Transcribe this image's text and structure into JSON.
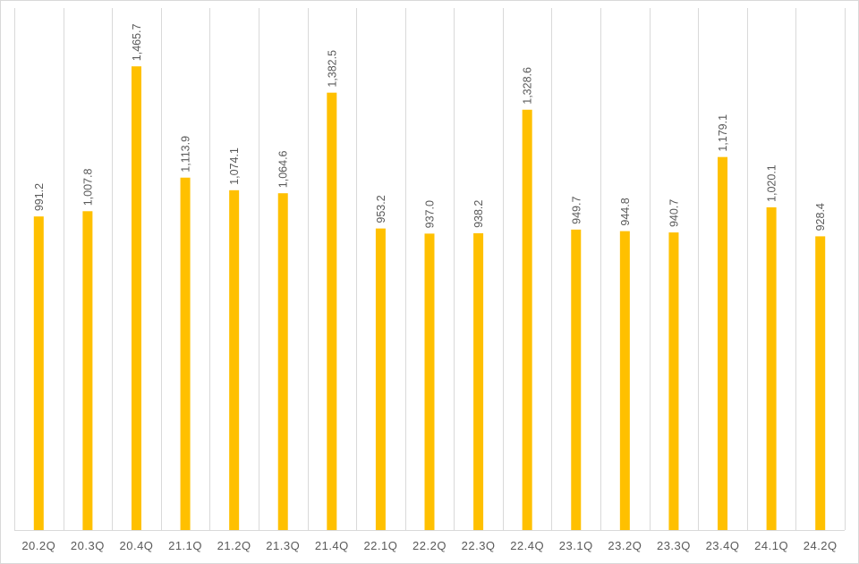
{
  "chart_data": {
    "type": "bar",
    "title": "",
    "xlabel": "",
    "ylabel": "",
    "categories": [
      "20.2Q",
      "20.3Q",
      "20.4Q",
      "21.1Q",
      "21.2Q",
      "21.3Q",
      "21.4Q",
      "22.1Q",
      "22.2Q",
      "22.3Q",
      "22.4Q",
      "23.1Q",
      "23.2Q",
      "23.3Q",
      "23.4Q",
      "24.1Q",
      "24.2Q"
    ],
    "values": [
      991.2,
      1007.8,
      1465.7,
      1113.9,
      1074.1,
      1064.6,
      1382.5,
      953.2,
      937.0,
      938.2,
      1328.6,
      949.7,
      944.8,
      940.7,
      1179.1,
      1020.1,
      928.4
    ],
    "data_labels": [
      "991.2",
      "1,007.8",
      "1,465.7",
      "1,113.9",
      "1,074.1",
      "1,064.6",
      "1,382.5",
      "953.2",
      "937.0",
      "938.2",
      "1,328.6",
      "949.7",
      "944.8",
      "940.7",
      "1,179.1",
      "1,020.1",
      "928.4"
    ],
    "ylim": [
      0,
      1650
    ],
    "y_axis_visible": false,
    "grid": "vertical category separators",
    "legend": "none",
    "bar_color": "#FFC000",
    "grid_color": "#d9d9d9",
    "text_color": "#595959"
  }
}
